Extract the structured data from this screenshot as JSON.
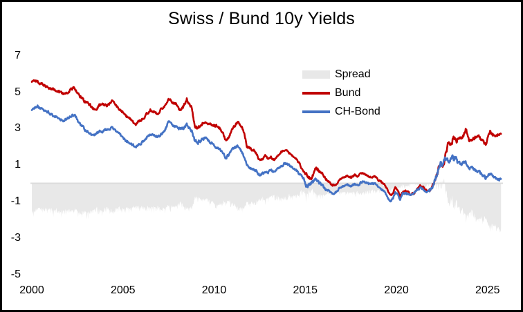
{
  "title": "Swiss / Bund 10y Yields",
  "chart_data": {
    "type": "line",
    "title": "Swiss / Bund 10y Yields",
    "x_axis": {
      "min": 2000,
      "max": 2026.4,
      "ticks": [
        2000,
        2005,
        2010,
        2015,
        2020,
        2025
      ]
    },
    "y_axis": {
      "min": -5,
      "max": 7,
      "ticks": [
        7,
        5,
        3,
        1,
        -1,
        -3,
        -5
      ]
    },
    "grid": "zero-line-only",
    "zero_line_color": "#DCDCDC",
    "legend": {
      "position": "top-right",
      "items": [
        {
          "label": "Spread",
          "type": "area",
          "color": "#E8E8E8"
        },
        {
          "label": "Bund",
          "type": "line",
          "color": "#C00000"
        },
        {
          "label": "CH-Bond",
          "type": "line",
          "color": "#4472C4"
        }
      ]
    },
    "series": [
      {
        "name": "Bund",
        "render": "line",
        "color": "#C00000",
        "points": [
          [
            2000.0,
            5.6
          ],
          [
            2000.25,
            5.65
          ],
          [
            2000.5,
            5.45
          ],
          [
            2000.75,
            5.35
          ],
          [
            2001.0,
            5.2
          ],
          [
            2001.2,
            5.15
          ],
          [
            2001.45,
            5.0
          ],
          [
            2001.7,
            4.9
          ],
          [
            2001.9,
            4.95
          ],
          [
            2002.1,
            5.1
          ],
          [
            2002.3,
            5.25
          ],
          [
            2002.6,
            4.8
          ],
          [
            2002.9,
            4.5
          ],
          [
            2003.1,
            4.35
          ],
          [
            2003.5,
            4.0
          ],
          [
            2003.7,
            4.3
          ],
          [
            2003.9,
            4.35
          ],
          [
            2004.1,
            4.25
          ],
          [
            2004.4,
            4.5
          ],
          [
            2004.7,
            4.2
          ],
          [
            2005.0,
            3.85
          ],
          [
            2005.2,
            3.7
          ],
          [
            2005.45,
            3.45
          ],
          [
            2005.7,
            3.2
          ],
          [
            2005.95,
            3.45
          ],
          [
            2006.2,
            3.65
          ],
          [
            2006.5,
            4.05
          ],
          [
            2006.7,
            3.95
          ],
          [
            2006.9,
            3.8
          ],
          [
            2007.1,
            4.05
          ],
          [
            2007.3,
            4.25
          ],
          [
            2007.5,
            4.65
          ],
          [
            2007.7,
            4.45
          ],
          [
            2007.9,
            4.35
          ],
          [
            2008.1,
            4.0
          ],
          [
            2008.3,
            4.15
          ],
          [
            2008.5,
            4.65
          ],
          [
            2008.65,
            4.4
          ],
          [
            2008.8,
            4.0
          ],
          [
            2008.95,
            3.1
          ],
          [
            2009.1,
            3.05
          ],
          [
            2009.3,
            3.25
          ],
          [
            2009.5,
            3.4
          ],
          [
            2009.7,
            3.3
          ],
          [
            2009.9,
            3.2
          ],
          [
            2010.1,
            3.15
          ],
          [
            2010.3,
            3.05
          ],
          [
            2010.5,
            2.7
          ],
          [
            2010.65,
            2.35
          ],
          [
            2010.8,
            2.5
          ],
          [
            2010.95,
            2.9
          ],
          [
            2011.1,
            3.1
          ],
          [
            2011.3,
            3.35
          ],
          [
            2011.5,
            3.1
          ],
          [
            2011.65,
            2.8
          ],
          [
            2011.8,
            2.05
          ],
          [
            2011.95,
            1.95
          ],
          [
            2012.1,
            1.85
          ],
          [
            2012.3,
            1.7
          ],
          [
            2012.5,
            1.25
          ],
          [
            2012.65,
            1.35
          ],
          [
            2012.8,
            1.5
          ],
          [
            2012.95,
            1.4
          ],
          [
            2013.1,
            1.45
          ],
          [
            2013.3,
            1.3
          ],
          [
            2013.5,
            1.55
          ],
          [
            2013.7,
            1.75
          ],
          [
            2013.9,
            1.85
          ],
          [
            2014.1,
            1.7
          ],
          [
            2014.3,
            1.5
          ],
          [
            2014.5,
            1.3
          ],
          [
            2014.7,
            1.05
          ],
          [
            2014.9,
            0.65
          ],
          [
            2015.1,
            0.4
          ],
          [
            2015.3,
            0.2
          ],
          [
            2015.5,
            0.65
          ],
          [
            2015.6,
            0.9
          ],
          [
            2015.75,
            0.7
          ],
          [
            2015.9,
            0.6
          ],
          [
            2016.1,
            0.25
          ],
          [
            2016.3,
            0.15
          ],
          [
            2016.5,
            -0.1
          ],
          [
            2016.7,
            -0.05
          ],
          [
            2016.9,
            0.2
          ],
          [
            2017.1,
            0.35
          ],
          [
            2017.3,
            0.4
          ],
          [
            2017.5,
            0.3
          ],
          [
            2017.7,
            0.45
          ],
          [
            2017.9,
            0.4
          ],
          [
            2018.05,
            0.6
          ],
          [
            2018.2,
            0.55
          ],
          [
            2018.4,
            0.4
          ],
          [
            2018.6,
            0.35
          ],
          [
            2018.8,
            0.4
          ],
          [
            2019.0,
            0.2
          ],
          [
            2019.2,
            0.05
          ],
          [
            2019.4,
            -0.15
          ],
          [
            2019.65,
            -0.65
          ],
          [
            2019.8,
            -0.55
          ],
          [
            2019.95,
            -0.25
          ],
          [
            2020.1,
            -0.4
          ],
          [
            2020.2,
            -0.75
          ],
          [
            2020.35,
            -0.45
          ],
          [
            2020.5,
            -0.45
          ],
          [
            2020.65,
            -0.5
          ],
          [
            2020.8,
            -0.6
          ],
          [
            2020.95,
            -0.55
          ],
          [
            2021.1,
            -0.35
          ],
          [
            2021.3,
            -0.15
          ],
          [
            2021.5,
            -0.25
          ],
          [
            2021.7,
            -0.45
          ],
          [
            2021.9,
            -0.3
          ],
          [
            2022.0,
            -0.1
          ],
          [
            2022.1,
            0.2
          ],
          [
            2022.25,
            0.6
          ],
          [
            2022.35,
            0.95
          ],
          [
            2022.45,
            1.15
          ],
          [
            2022.55,
            0.95
          ],
          [
            2022.65,
            1.35
          ],
          [
            2022.75,
            1.75
          ],
          [
            2022.85,
            2.35
          ],
          [
            2022.95,
            2.1
          ],
          [
            2023.05,
            2.3
          ],
          [
            2023.15,
            2.65
          ],
          [
            2023.25,
            2.3
          ],
          [
            2023.4,
            2.4
          ],
          [
            2023.55,
            2.5
          ],
          [
            2023.7,
            2.65
          ],
          [
            2023.8,
            2.95
          ],
          [
            2023.9,
            2.7
          ],
          [
            2024.0,
            2.25
          ],
          [
            2024.15,
            2.4
          ],
          [
            2024.3,
            2.45
          ],
          [
            2024.45,
            2.65
          ],
          [
            2024.6,
            2.45
          ],
          [
            2024.75,
            2.3
          ],
          [
            2024.9,
            2.15
          ],
          [
            2025.0,
            2.45
          ],
          [
            2025.15,
            2.85
          ],
          [
            2025.3,
            2.6
          ],
          [
            2025.45,
            2.65
          ],
          [
            2025.6,
            2.7
          ],
          [
            2025.75,
            2.65
          ]
        ]
      },
      {
        "name": "CH-Bond",
        "render": "line",
        "color": "#4472C4",
        "points": [
          [
            2000.0,
            4.05
          ],
          [
            2000.15,
            4.15
          ],
          [
            2000.3,
            4.25
          ],
          [
            2000.5,
            4.1
          ],
          [
            2000.7,
            4.0
          ],
          [
            2000.9,
            3.9
          ],
          [
            2001.1,
            3.75
          ],
          [
            2001.3,
            3.65
          ],
          [
            2001.5,
            3.55
          ],
          [
            2001.7,
            3.45
          ],
          [
            2001.9,
            3.5
          ],
          [
            2002.1,
            3.65
          ],
          [
            2002.35,
            3.75
          ],
          [
            2002.6,
            3.35
          ],
          [
            2002.9,
            2.95
          ],
          [
            2003.1,
            2.8
          ],
          [
            2003.3,
            2.6
          ],
          [
            2003.5,
            2.65
          ],
          [
            2003.7,
            2.85
          ],
          [
            2003.9,
            2.85
          ],
          [
            2004.1,
            2.95
          ],
          [
            2004.4,
            3.05
          ],
          [
            2004.6,
            2.9
          ],
          [
            2004.8,
            2.7
          ],
          [
            2005.0,
            2.45
          ],
          [
            2005.2,
            2.3
          ],
          [
            2005.45,
            2.15
          ],
          [
            2005.7,
            2.0
          ],
          [
            2005.95,
            2.15
          ],
          [
            2006.2,
            2.4
          ],
          [
            2006.5,
            2.75
          ],
          [
            2006.7,
            2.65
          ],
          [
            2006.9,
            2.55
          ],
          [
            2007.1,
            2.7
          ],
          [
            2007.3,
            2.9
          ],
          [
            2007.5,
            3.4
          ],
          [
            2007.7,
            3.2
          ],
          [
            2007.9,
            3.1
          ],
          [
            2008.1,
            2.95
          ],
          [
            2008.3,
            3.05
          ],
          [
            2008.5,
            3.25
          ],
          [
            2008.65,
            3.05
          ],
          [
            2008.8,
            2.8
          ],
          [
            2008.95,
            2.3
          ],
          [
            2009.1,
            2.25
          ],
          [
            2009.3,
            2.4
          ],
          [
            2009.5,
            2.5
          ],
          [
            2009.7,
            2.35
          ],
          [
            2009.9,
            2.15
          ],
          [
            2010.1,
            2.0
          ],
          [
            2010.3,
            1.9
          ],
          [
            2010.5,
            1.6
          ],
          [
            2010.65,
            1.4
          ],
          [
            2010.8,
            1.55
          ],
          [
            2010.95,
            1.8
          ],
          [
            2011.1,
            1.95
          ],
          [
            2011.3,
            2.05
          ],
          [
            2011.5,
            1.75
          ],
          [
            2011.65,
            1.45
          ],
          [
            2011.8,
            1.0
          ],
          [
            2011.95,
            0.85
          ],
          [
            2012.1,
            0.8
          ],
          [
            2012.3,
            0.7
          ],
          [
            2012.5,
            0.45
          ],
          [
            2012.65,
            0.55
          ],
          [
            2012.8,
            0.6
          ],
          [
            2012.95,
            0.55
          ],
          [
            2013.1,
            0.75
          ],
          [
            2013.3,
            0.65
          ],
          [
            2013.5,
            0.8
          ],
          [
            2013.7,
            0.95
          ],
          [
            2013.9,
            1.1
          ],
          [
            2014.1,
            1.0
          ],
          [
            2014.3,
            0.85
          ],
          [
            2014.5,
            0.7
          ],
          [
            2014.7,
            0.5
          ],
          [
            2014.9,
            0.3
          ],
          [
            2015.05,
            -0.15
          ],
          [
            2015.2,
            -0.05
          ],
          [
            2015.35,
            0.0
          ],
          [
            2015.5,
            0.1
          ],
          [
            2015.6,
            0.25
          ],
          [
            2015.75,
            0.0
          ],
          [
            2015.9,
            -0.1
          ],
          [
            2016.1,
            -0.3
          ],
          [
            2016.3,
            -0.35
          ],
          [
            2016.5,
            -0.6
          ],
          [
            2016.7,
            -0.5
          ],
          [
            2016.9,
            -0.25
          ],
          [
            2017.1,
            -0.15
          ],
          [
            2017.3,
            -0.1
          ],
          [
            2017.5,
            -0.15
          ],
          [
            2017.7,
            -0.05
          ],
          [
            2017.9,
            -0.1
          ],
          [
            2018.05,
            0.05
          ],
          [
            2018.2,
            0.1
          ],
          [
            2018.4,
            0.0
          ],
          [
            2018.6,
            -0.05
          ],
          [
            2018.8,
            0.0
          ],
          [
            2019.0,
            -0.2
          ],
          [
            2019.2,
            -0.35
          ],
          [
            2019.4,
            -0.5
          ],
          [
            2019.65,
            -1.05
          ],
          [
            2019.8,
            -0.85
          ],
          [
            2019.95,
            -0.5
          ],
          [
            2020.1,
            -0.65
          ],
          [
            2020.2,
            -0.9
          ],
          [
            2020.35,
            -0.55
          ],
          [
            2020.5,
            -0.55
          ],
          [
            2020.65,
            -0.6
          ],
          [
            2020.8,
            -0.65
          ],
          [
            2020.95,
            -0.55
          ],
          [
            2021.1,
            -0.4
          ],
          [
            2021.3,
            -0.25
          ],
          [
            2021.5,
            -0.35
          ],
          [
            2021.7,
            -0.5
          ],
          [
            2021.9,
            -0.3
          ],
          [
            2022.0,
            -0.05
          ],
          [
            2022.1,
            0.2
          ],
          [
            2022.25,
            0.55
          ],
          [
            2022.35,
            0.8
          ],
          [
            2022.45,
            1.15
          ],
          [
            2022.55,
            0.9
          ],
          [
            2022.65,
            1.2
          ],
          [
            2022.75,
            1.45
          ],
          [
            2022.85,
            1.2
          ],
          [
            2022.95,
            1.35
          ],
          [
            2023.05,
            1.55
          ],
          [
            2023.15,
            1.3
          ],
          [
            2023.25,
            1.45
          ],
          [
            2023.4,
            1.1
          ],
          [
            2023.55,
            1.05
          ],
          [
            2023.7,
            1.1
          ],
          [
            2023.8,
            1.15
          ],
          [
            2023.9,
            1.0
          ],
          [
            2024.0,
            0.8
          ],
          [
            2024.15,
            0.85
          ],
          [
            2024.3,
            0.75
          ],
          [
            2024.45,
            0.7
          ],
          [
            2024.6,
            0.55
          ],
          [
            2024.75,
            0.45
          ],
          [
            2024.9,
            0.3
          ],
          [
            2025.0,
            0.45
          ],
          [
            2025.15,
            0.55
          ],
          [
            2025.3,
            0.4
          ],
          [
            2025.45,
            0.35
          ],
          [
            2025.6,
            0.25
          ],
          [
            2025.75,
            0.2
          ]
        ]
      },
      {
        "name": "Spread",
        "render": "area",
        "color": "#E8E8E8",
        "derived": "CH-Bond minus Bund, filled from 0 baseline"
      }
    ]
  }
}
